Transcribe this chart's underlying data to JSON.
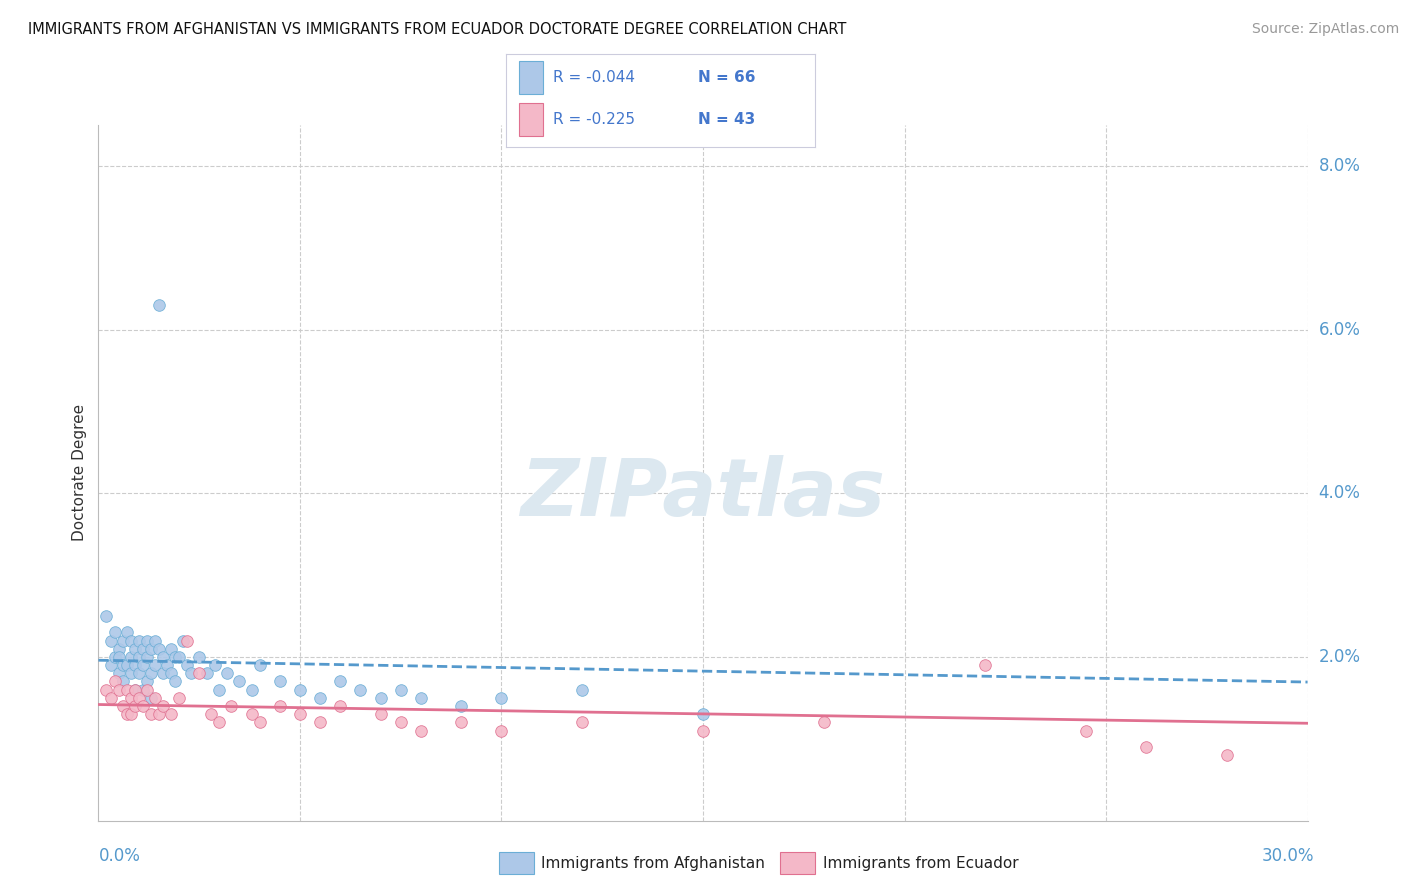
{
  "title": "IMMIGRANTS FROM AFGHANISTAN VS IMMIGRANTS FROM ECUADOR DOCTORATE DEGREE CORRELATION CHART",
  "source": "Source: ZipAtlas.com",
  "ylabel": "Doctorate Degree",
  "xmin": 0.0,
  "xmax": 0.3,
  "ymin": 0.0,
  "ymax": 0.085,
  "yticks": [
    0.0,
    0.02,
    0.04,
    0.06,
    0.08
  ],
  "series1_name": "Immigrants from Afghanistan",
  "series1_color": "#adc8e8",
  "series1_edge": "#6baed6",
  "series1_R": -0.044,
  "series1_N": 66,
  "series1_line_color": "#5599cc",
  "series2_name": "Immigrants from Ecuador",
  "series2_color": "#f4b8c8",
  "series2_edge": "#e07090",
  "series2_R": -0.225,
  "series2_N": 43,
  "series2_line_color": "#e07090",
  "watermark": "ZIPatlas",
  "watermark_color": "#dce8f0",
  "background_color": "#ffffff",
  "grid_color": "#cccccc",
  "afghanistan_x": [
    0.002,
    0.003,
    0.003,
    0.004,
    0.004,
    0.005,
    0.005,
    0.005,
    0.006,
    0.006,
    0.006,
    0.007,
    0.007,
    0.008,
    0.008,
    0.008,
    0.009,
    0.009,
    0.009,
    0.01,
    0.01,
    0.01,
    0.011,
    0.011,
    0.011,
    0.012,
    0.012,
    0.012,
    0.013,
    0.013,
    0.013,
    0.014,
    0.014,
    0.015,
    0.015,
    0.016,
    0.016,
    0.017,
    0.018,
    0.018,
    0.019,
    0.019,
    0.02,
    0.021,
    0.022,
    0.023,
    0.025,
    0.027,
    0.029,
    0.03,
    0.032,
    0.035,
    0.038,
    0.04,
    0.045,
    0.05,
    0.055,
    0.06,
    0.065,
    0.07,
    0.075,
    0.08,
    0.09,
    0.1,
    0.12,
    0.15
  ],
  "afghanistan_y": [
    0.025,
    0.022,
    0.019,
    0.023,
    0.02,
    0.021,
    0.018,
    0.02,
    0.022,
    0.019,
    0.017,
    0.023,
    0.019,
    0.022,
    0.02,
    0.018,
    0.021,
    0.019,
    0.016,
    0.02,
    0.022,
    0.018,
    0.021,
    0.019,
    0.016,
    0.022,
    0.02,
    0.017,
    0.021,
    0.018,
    0.015,
    0.022,
    0.019,
    0.021,
    0.063,
    0.018,
    0.02,
    0.019,
    0.021,
    0.018,
    0.02,
    0.017,
    0.02,
    0.022,
    0.019,
    0.018,
    0.02,
    0.018,
    0.019,
    0.016,
    0.018,
    0.017,
    0.016,
    0.019,
    0.017,
    0.016,
    0.015,
    0.017,
    0.016,
    0.015,
    0.016,
    0.015,
    0.014,
    0.015,
    0.016,
    0.013
  ],
  "ecuador_x": [
    0.002,
    0.003,
    0.004,
    0.005,
    0.006,
    0.007,
    0.007,
    0.008,
    0.008,
    0.009,
    0.009,
    0.01,
    0.011,
    0.012,
    0.013,
    0.014,
    0.015,
    0.016,
    0.018,
    0.02,
    0.022,
    0.025,
    0.028,
    0.03,
    0.033,
    0.038,
    0.04,
    0.045,
    0.05,
    0.055,
    0.06,
    0.07,
    0.075,
    0.08,
    0.09,
    0.1,
    0.12,
    0.15,
    0.18,
    0.22,
    0.245,
    0.26,
    0.28
  ],
  "ecuador_y": [
    0.016,
    0.015,
    0.017,
    0.016,
    0.014,
    0.016,
    0.013,
    0.015,
    0.013,
    0.016,
    0.014,
    0.015,
    0.014,
    0.016,
    0.013,
    0.015,
    0.013,
    0.014,
    0.013,
    0.015,
    0.022,
    0.018,
    0.013,
    0.012,
    0.014,
    0.013,
    0.012,
    0.014,
    0.013,
    0.012,
    0.014,
    0.013,
    0.012,
    0.011,
    0.012,
    0.011,
    0.012,
    0.011,
    0.012,
    0.019,
    0.011,
    0.009,
    0.008
  ]
}
